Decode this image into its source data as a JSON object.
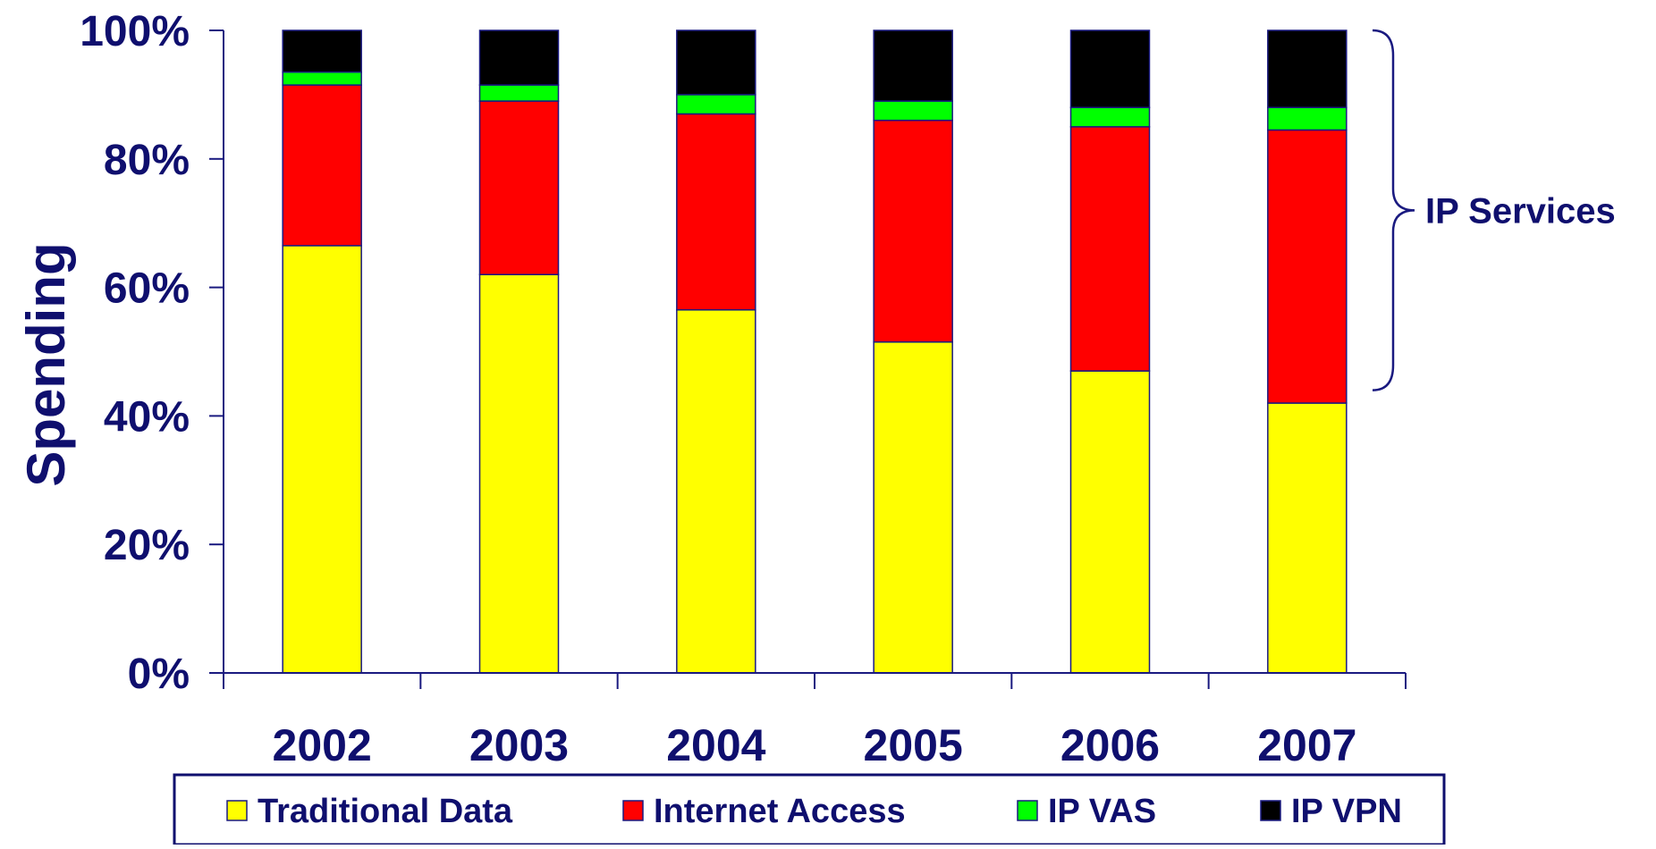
{
  "chart_data": {
    "type": "bar",
    "stacked": true,
    "normalized": true,
    "categories": [
      "2002",
      "2003",
      "2004",
      "2005",
      "2006",
      "2007"
    ],
    "series": [
      {
        "name": "Traditional Data",
        "color": "#ffff00",
        "values": [
          66.5,
          62,
          56.5,
          51.5,
          47,
          42
        ]
      },
      {
        "name": "Internet Access",
        "color": "#ff0000",
        "values": [
          25,
          27,
          30.5,
          34.5,
          38,
          42.5
        ]
      },
      {
        "name": "IP VAS",
        "color": "#00ff00",
        "values": [
          2,
          2.5,
          3,
          3,
          3,
          3.5
        ]
      },
      {
        "name": "IP VPN",
        "color": "#000000",
        "values": [
          6.5,
          8.5,
          10,
          11,
          12,
          12
        ]
      }
    ],
    "ylabel": "Spending",
    "yticks": [
      "0%",
      "20%",
      "40%",
      "60%",
      "80%",
      "100%"
    ],
    "ylim": [
      0,
      100
    ],
    "grid": false,
    "legend": {
      "position": "bottom",
      "box": true
    },
    "annotation": {
      "text": "IP Services",
      "range": [
        44,
        100
      ]
    },
    "colors": {
      "text": "#0f0f6e",
      "axis": "#1a1a80",
      "legend_border": "#0f0f6e"
    }
  }
}
